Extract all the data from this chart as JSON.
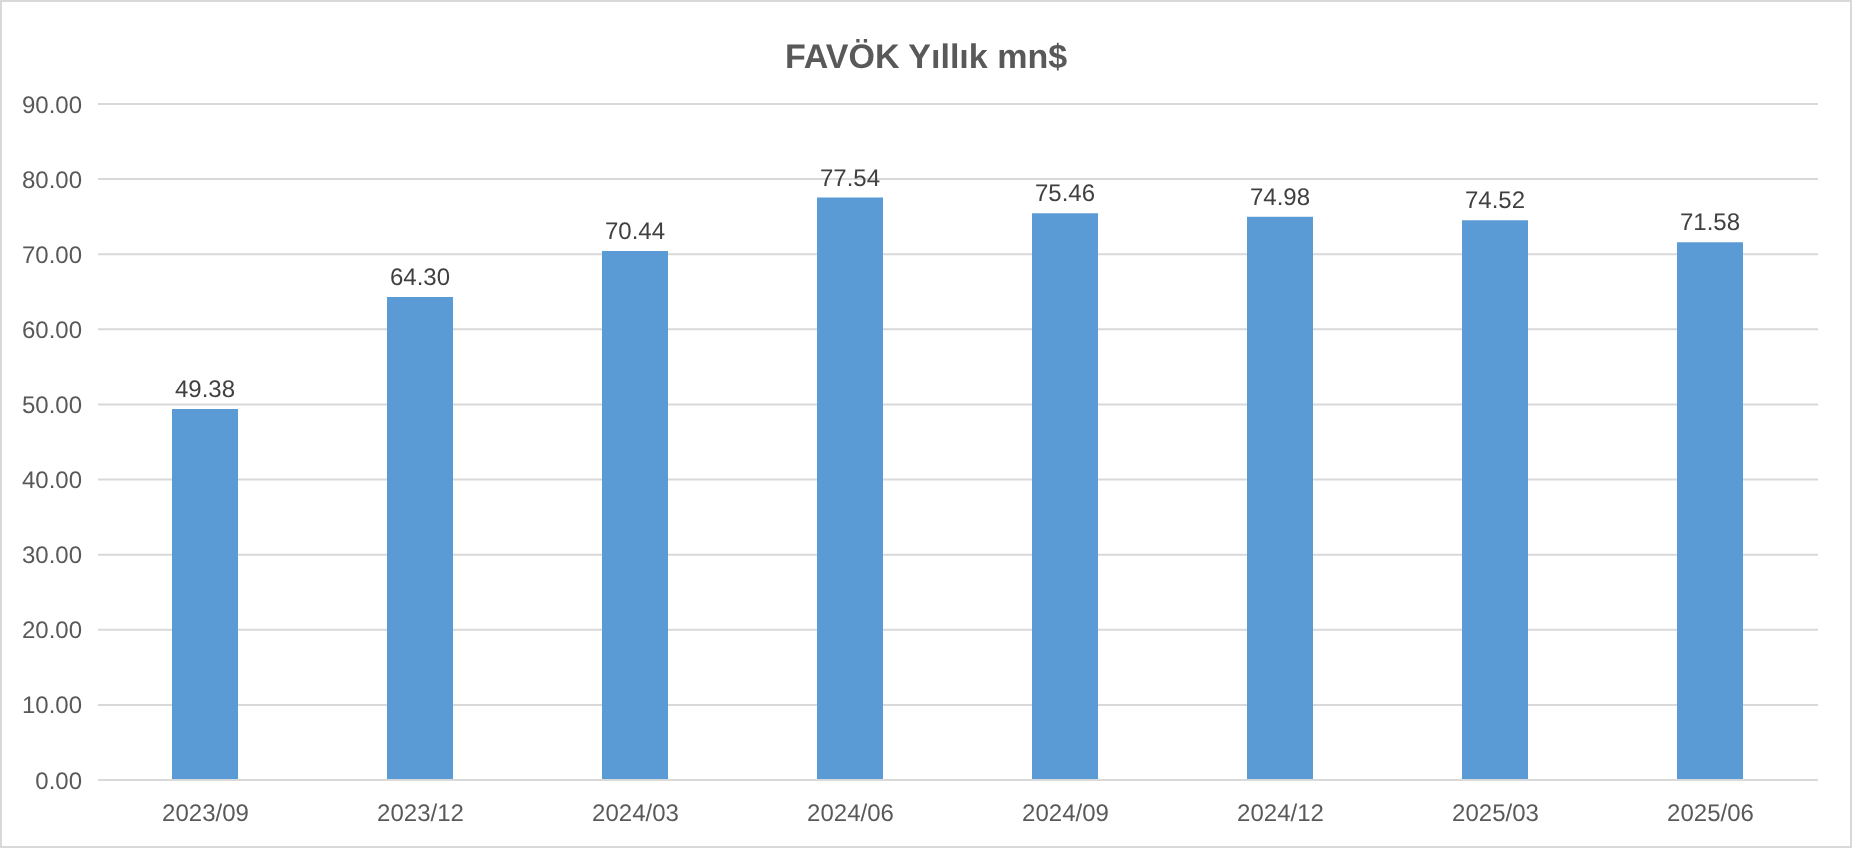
{
  "chart_data": {
    "type": "bar",
    "title": "FAVÖK Yıllık mn$",
    "categories": [
      "2023/09",
      "2023/12",
      "2024/03",
      "2024/06",
      "2024/09",
      "2024/12",
      "2025/03",
      "2025/06"
    ],
    "values": [
      49.38,
      64.3,
      70.44,
      77.54,
      75.46,
      74.98,
      74.52,
      71.58
    ],
    "value_labels": [
      "49.38",
      "64.30",
      "70.44",
      "77.54",
      "75.46",
      "74.98",
      "74.52",
      "71.58"
    ],
    "color": "#5b9bd5",
    "ylim": [
      0,
      90
    ],
    "yticks": [
      {
        "value": 0,
        "label": "0.00"
      },
      {
        "value": 10,
        "label": "10.00"
      },
      {
        "value": 20,
        "label": "20.00"
      },
      {
        "value": 30,
        "label": "30.00"
      },
      {
        "value": 40,
        "label": "40.00"
      },
      {
        "value": 50,
        "label": "50.00"
      },
      {
        "value": 60,
        "label": "60.00"
      },
      {
        "value": 70,
        "label": "70.00"
      },
      {
        "value": 80,
        "label": "80.00"
      },
      {
        "value": 90,
        "label": "90.00"
      }
    ],
    "grid": "y"
  }
}
